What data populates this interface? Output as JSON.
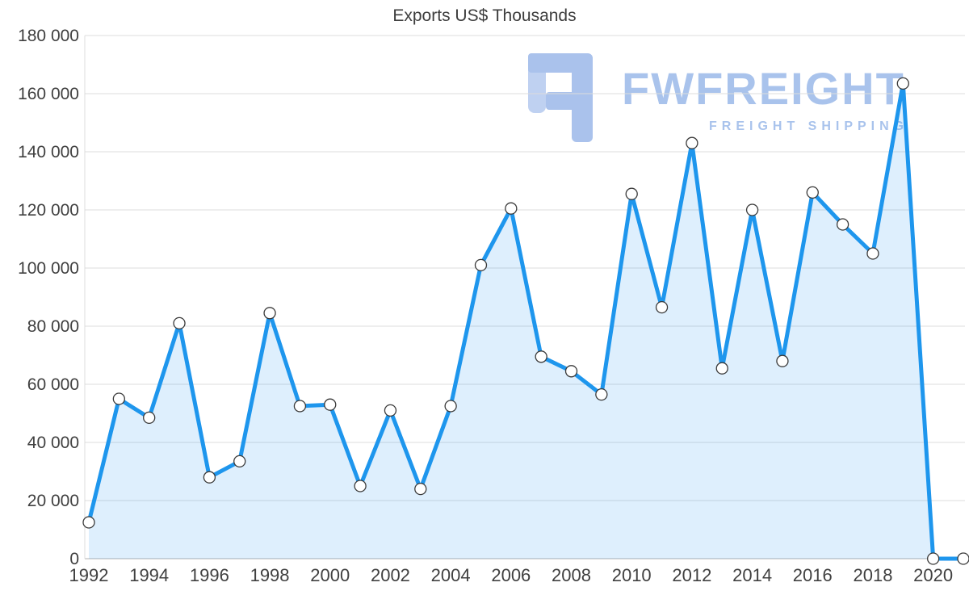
{
  "chart_data": {
    "type": "area",
    "title": "Exports US$ Thousands",
    "xlabel": "",
    "ylabel": "",
    "x": [
      1992,
      1993,
      1994,
      1995,
      1996,
      1997,
      1998,
      1999,
      2000,
      2001,
      2002,
      2003,
      2004,
      2005,
      2006,
      2007,
      2008,
      2009,
      2010,
      2011,
      2012,
      2013,
      2014,
      2015,
      2016,
      2017,
      2018,
      2019,
      2020,
      2021
    ],
    "values": [
      12500,
      55000,
      48500,
      81000,
      28000,
      33500,
      84500,
      52500,
      53000,
      25000,
      51000,
      24000,
      52500,
      101000,
      120500,
      69500,
      64500,
      56500,
      125500,
      86500,
      143000,
      65500,
      120000,
      68000,
      126000,
      115000,
      105000,
      163500,
      0,
      0
    ],
    "ylim": [
      0,
      180000
    ],
    "y_tick_step": 20000,
    "y_tick_labels": [
      "0",
      "20 000",
      "40 000",
      "60 000",
      "80 000",
      "100 000",
      "120 000",
      "140 000",
      "160 000",
      "180 000"
    ],
    "x_tick_labels": [
      "1992",
      "1994",
      "1996",
      "1998",
      "2000",
      "2002",
      "2004",
      "2006",
      "2008",
      "2010",
      "2012",
      "2014",
      "2016",
      "2018",
      "2020"
    ],
    "grid": "horizontal",
    "legend_position": "none",
    "line_color": "#1e96ed",
    "fill_color": "rgba(33,150,243,0.15)",
    "marker_fill": "#ffffff",
    "marker_stroke": "#3a3a3a",
    "gridline_color": "#dcdcdc",
    "axis_line_color": "#b0b0b0",
    "tick_label_color": "#404040"
  },
  "watermark": {
    "brand": "FWFREIGHT",
    "tagline": "FREIGHT SHIPPING",
    "logo_icon": "fwfreight-logo",
    "color": "#a9c3ec"
  }
}
